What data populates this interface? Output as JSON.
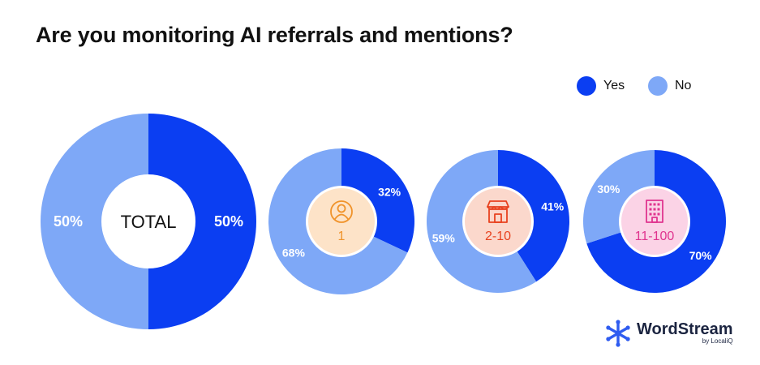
{
  "title": "Are you monitoring AI referrals and mentions?",
  "legend": [
    {
      "label": "Yes",
      "color": "#0b3ef2"
    },
    {
      "label": "No",
      "color": "#7ea8f7"
    }
  ],
  "chart_data": [
    {
      "type": "pie",
      "center_label": "TOTAL",
      "icon": "",
      "slices": [
        {
          "label": "Yes",
          "value": 50,
          "text": "50%"
        },
        {
          "label": "No",
          "value": 50,
          "text": "50%"
        }
      ]
    },
    {
      "type": "pie",
      "center_label": "1",
      "icon": "person-icon",
      "icon_color": "#f0932a",
      "center_bg": "#fde3c8",
      "label_color": "#f0932a",
      "slices": [
        {
          "label": "Yes",
          "value": 32,
          "text": "32%"
        },
        {
          "label": "No",
          "value": 68,
          "text": "68%"
        }
      ]
    },
    {
      "type": "pie",
      "center_label": "2-10",
      "icon": "storefront-icon",
      "icon_color": "#e8421f",
      "center_bg": "#fbd8cc",
      "label_color": "#e8421f",
      "slices": [
        {
          "label": "Yes",
          "value": 41,
          "text": "41%"
        },
        {
          "label": "No",
          "value": 59,
          "text": "59%"
        }
      ]
    },
    {
      "type": "pie",
      "center_label": "11-100",
      "icon": "office-building-icon",
      "icon_color": "#e0348f",
      "center_bg": "#fbd3e6",
      "label_color": "#e0348f",
      "slices": [
        {
          "label": "Yes",
          "value": 70,
          "text": "70%"
        },
        {
          "label": "No",
          "value": 30,
          "text": "30%"
        }
      ]
    }
  ],
  "branding": {
    "name": "WordStream",
    "sub": "by LocaliQ",
    "color": "#1b2440"
  }
}
